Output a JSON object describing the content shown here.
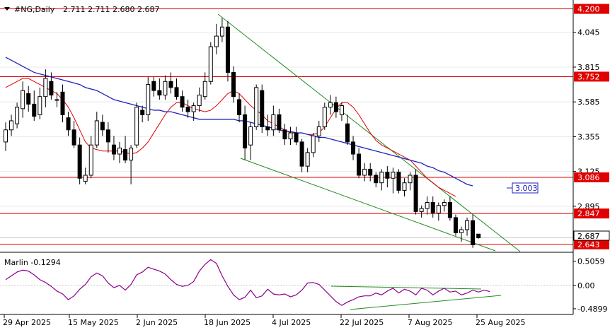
{
  "window": {
    "symbol_label": "#NG,Daily",
    "ohlc_values": "2.711 2.711 2.680 2.687"
  },
  "chart_data": {
    "type": "candlestick",
    "title": "#NG,Daily",
    "x_ticks": [
      "29 Apr 2025",
      "15 May 2025",
      "2 Jun 2025",
      "18 Jun 2025",
      "4 Jul 2025",
      "22 Jul 2025",
      "7 Aug 2025",
      "25 Aug 2025"
    ],
    "y_ticks": [
      "4.045",
      "3.815",
      "3.585",
      "3.355",
      "3.125",
      "2.895"
    ],
    "ylim": [
      2.6,
      4.24
    ],
    "candles": [
      [
        3.32,
        3.45,
        3.26,
        3.4
      ],
      [
        3.4,
        3.5,
        3.36,
        3.46
      ],
      [
        3.44,
        3.58,
        3.41,
        3.55
      ],
      [
        3.54,
        3.72,
        3.48,
        3.66
      ],
      [
        3.64,
        3.69,
        3.52,
        3.57
      ],
      [
        3.57,
        3.66,
        3.46,
        3.49
      ],
      [
        3.5,
        3.68,
        3.47,
        3.62
      ],
      [
        3.62,
        3.8,
        3.55,
        3.74
      ],
      [
        3.72,
        3.78,
        3.6,
        3.63
      ],
      [
        3.6,
        3.65,
        3.55,
        3.6
      ],
      [
        3.65,
        3.7,
        3.45,
        3.5
      ],
      [
        3.48,
        3.52,
        3.36,
        3.4
      ],
      [
        3.4,
        3.46,
        3.28,
        3.3
      ],
      [
        3.3,
        3.35,
        3.04,
        3.08
      ],
      [
        3.06,
        3.15,
        3.04,
        3.1
      ],
      [
        3.1,
        3.36,
        3.08,
        3.3
      ],
      [
        3.3,
        3.52,
        3.28,
        3.46
      ],
      [
        3.45,
        3.5,
        3.36,
        3.4
      ],
      [
        3.4,
        3.45,
        3.25,
        3.32
      ],
      [
        3.3,
        3.36,
        3.2,
        3.24
      ],
      [
        3.24,
        3.32,
        3.18,
        3.28
      ],
      [
        3.27,
        3.36,
        3.18,
        3.2
      ],
      [
        3.2,
        3.3,
        3.04,
        3.28
      ],
      [
        3.3,
        3.58,
        3.28,
        3.55
      ],
      [
        3.53,
        3.56,
        3.45,
        3.5
      ],
      [
        3.5,
        3.75,
        3.46,
        3.7
      ],
      [
        3.72,
        3.75,
        3.62,
        3.66
      ],
      [
        3.66,
        3.74,
        3.6,
        3.63
      ],
      [
        3.63,
        3.76,
        3.6,
        3.72
      ],
      [
        3.72,
        3.78,
        3.64,
        3.68
      ],
      [
        3.68,
        3.74,
        3.6,
        3.62
      ],
      [
        3.62,
        3.66,
        3.52,
        3.55
      ],
      [
        3.55,
        3.6,
        3.48,
        3.52
      ],
      [
        3.52,
        3.58,
        3.46,
        3.56
      ],
      [
        3.56,
        3.68,
        3.52,
        3.63
      ],
      [
        3.62,
        3.78,
        3.6,
        3.72
      ],
      [
        3.72,
        3.98,
        3.7,
        3.95
      ],
      [
        3.95,
        4.1,
        3.9,
        4.02
      ],
      [
        4.02,
        4.14,
        3.98,
        4.08
      ],
      [
        4.08,
        4.12,
        3.72,
        3.78
      ],
      [
        3.78,
        3.82,
        3.58,
        3.62
      ],
      [
        3.6,
        3.64,
        3.45,
        3.5
      ],
      [
        3.5,
        3.56,
        3.2,
        3.28
      ],
      [
        3.3,
        3.45,
        3.2,
        3.42
      ],
      [
        3.42,
        3.7,
        3.4,
        3.68
      ],
      [
        3.66,
        3.7,
        3.38,
        3.42
      ],
      [
        3.42,
        3.5,
        3.36,
        3.4
      ],
      [
        3.4,
        3.56,
        3.36,
        3.5
      ],
      [
        3.5,
        3.54,
        3.38,
        3.4
      ],
      [
        3.4,
        3.44,
        3.3,
        3.34
      ],
      [
        3.34,
        3.42,
        3.3,
        3.38
      ],
      [
        3.38,
        3.42,
        3.3,
        3.32
      ],
      [
        3.32,
        3.34,
        3.12,
        3.16
      ],
      [
        3.16,
        3.28,
        3.12,
        3.25
      ],
      [
        3.25,
        3.38,
        3.22,
        3.36
      ],
      [
        3.36,
        3.46,
        3.32,
        3.42
      ],
      [
        3.42,
        3.58,
        3.4,
        3.55
      ],
      [
        3.55,
        3.63,
        3.5,
        3.58
      ],
      [
        3.58,
        3.62,
        3.48,
        3.52
      ],
      [
        3.5,
        3.58,
        3.46,
        3.56
      ],
      [
        3.44,
        3.5,
        3.3,
        3.32
      ],
      [
        3.32,
        3.36,
        3.2,
        3.24
      ],
      [
        3.24,
        3.28,
        3.08,
        3.1
      ],
      [
        3.1,
        3.18,
        3.06,
        3.14
      ],
      [
        3.14,
        3.18,
        3.06,
        3.1
      ],
      [
        3.1,
        3.12,
        3.02,
        3.05
      ],
      [
        3.05,
        3.14,
        3.0,
        3.12
      ],
      [
        3.12,
        3.16,
        3.02,
        3.08
      ],
      [
        3.08,
        3.15,
        2.98,
        3.12
      ],
      [
        3.12,
        3.14,
        2.98,
        3.0
      ],
      [
        3.0,
        3.08,
        2.96,
        3.05
      ],
      [
        3.05,
        3.12,
        3.0,
        3.1
      ],
      [
        3.1,
        3.14,
        2.84,
        2.86
      ],
      [
        2.86,
        2.9,
        2.82,
        2.88
      ],
      [
        2.88,
        2.96,
        2.84,
        2.92
      ],
      [
        2.92,
        2.96,
        2.82,
        2.85
      ],
      [
        2.85,
        2.92,
        2.8,
        2.9
      ],
      [
        2.9,
        2.94,
        2.86,
        2.92
      ],
      [
        2.92,
        2.96,
        2.8,
        2.82
      ],
      [
        2.82,
        2.84,
        2.7,
        2.72
      ],
      [
        2.72,
        2.76,
        2.66,
        2.74
      ],
      [
        2.74,
        2.82,
        2.7,
        2.8
      ],
      [
        2.8,
        2.84,
        2.62,
        2.64
      ],
      [
        2.711,
        2.711,
        2.68,
        2.687
      ]
    ],
    "price_lines": [
      {
        "value": 4.2,
        "label": "4.200"
      },
      {
        "value": 3.752,
        "label": "3.752"
      },
      {
        "value": 3.086,
        "label": "3.086"
      },
      {
        "value": 2.847,
        "label": "2.847"
      },
      {
        "value": 2.643,
        "label": "2.643"
      }
    ],
    "current_price_label": "2.687",
    "ma_label": "3.003",
    "red_ma": [
      3.68,
      3.7,
      3.72,
      3.74,
      3.74,
      3.72,
      3.7,
      3.68,
      3.66,
      3.64,
      3.6,
      3.55,
      3.48,
      3.4,
      3.32,
      3.28,
      3.27,
      3.26,
      3.26,
      3.26,
      3.26,
      3.25,
      3.24,
      3.25,
      3.28,
      3.32,
      3.38,
      3.44,
      3.5,
      3.55,
      3.58,
      3.58,
      3.56,
      3.54,
      3.53,
      3.52,
      3.53,
      3.56,
      3.6,
      3.64,
      3.66,
      3.64,
      3.6,
      3.56,
      3.53,
      3.5,
      3.46,
      3.44,
      3.42,
      3.4,
      3.38,
      3.38,
      3.38,
      3.37,
      3.37,
      3.38,
      3.42,
      3.48,
      3.54,
      3.58,
      3.58,
      3.55,
      3.5,
      3.44,
      3.38,
      3.33,
      3.3,
      3.28,
      3.26,
      3.24,
      3.22,
      3.2,
      3.16,
      3.12,
      3.08,
      3.05,
      3.02,
      3.0,
      2.98,
      2.96
    ],
    "blue_ma": [
      3.88,
      3.86,
      3.84,
      3.82,
      3.8,
      3.78,
      3.77,
      3.76,
      3.75,
      3.74,
      3.73,
      3.72,
      3.71,
      3.7,
      3.68,
      3.67,
      3.66,
      3.64,
      3.62,
      3.6,
      3.59,
      3.58,
      3.57,
      3.56,
      3.55,
      3.54,
      3.53,
      3.53,
      3.52,
      3.52,
      3.51,
      3.5,
      3.49,
      3.48,
      3.47,
      3.47,
      3.47,
      3.47,
      3.47,
      3.47,
      3.47,
      3.46,
      3.46,
      3.45,
      3.44,
      3.43,
      3.42,
      3.41,
      3.4,
      3.39,
      3.39,
      3.38,
      3.38,
      3.37,
      3.36,
      3.35,
      3.35,
      3.34,
      3.33,
      3.32,
      3.31,
      3.3,
      3.29,
      3.28,
      3.27,
      3.26,
      3.25,
      3.24,
      3.23,
      3.22,
      3.21,
      3.2,
      3.19,
      3.18,
      3.16,
      3.15,
      3.13,
      3.12,
      3.1,
      3.08,
      3.06,
      3.04,
      3.03
    ],
    "oscillator": {
      "label": "Marlin -0.1294",
      "y_ticks": [
        "0.5059",
        "0.00",
        "-0.4899"
      ],
      "ylim": [
        -0.58,
        0.62
      ],
      "values": [
        0.12,
        0.2,
        0.28,
        0.32,
        0.3,
        0.22,
        0.12,
        0.06,
        -0.02,
        -0.12,
        -0.18,
        -0.3,
        -0.22,
        -0.08,
        0.02,
        0.18,
        0.26,
        0.2,
        0.05,
        -0.05,
        0.0,
        -0.1,
        0.02,
        0.22,
        0.28,
        0.38,
        0.34,
        0.3,
        0.24,
        0.12,
        0.02,
        -0.02,
        0.0,
        0.08,
        0.3,
        0.44,
        0.54,
        0.46,
        0.2,
        -0.02,
        -0.2,
        -0.3,
        -0.25,
        -0.1,
        -0.26,
        -0.22,
        -0.08,
        -0.18,
        -0.2,
        -0.18,
        -0.24,
        -0.2,
        -0.1,
        0.05,
        0.06,
        0.02,
        -0.1,
        -0.22,
        -0.34,
        -0.42,
        -0.35,
        -0.3,
        -0.24,
        -0.22,
        -0.22,
        -0.16,
        -0.2,
        -0.12,
        -0.06,
        -0.16,
        -0.08,
        -0.12,
        -0.2,
        -0.06,
        -0.1,
        -0.2,
        -0.12,
        -0.06,
        -0.14,
        -0.12,
        -0.2,
        -0.16,
        -0.1,
        -0.14,
        -0.1,
        -0.13
      ]
    }
  }
}
